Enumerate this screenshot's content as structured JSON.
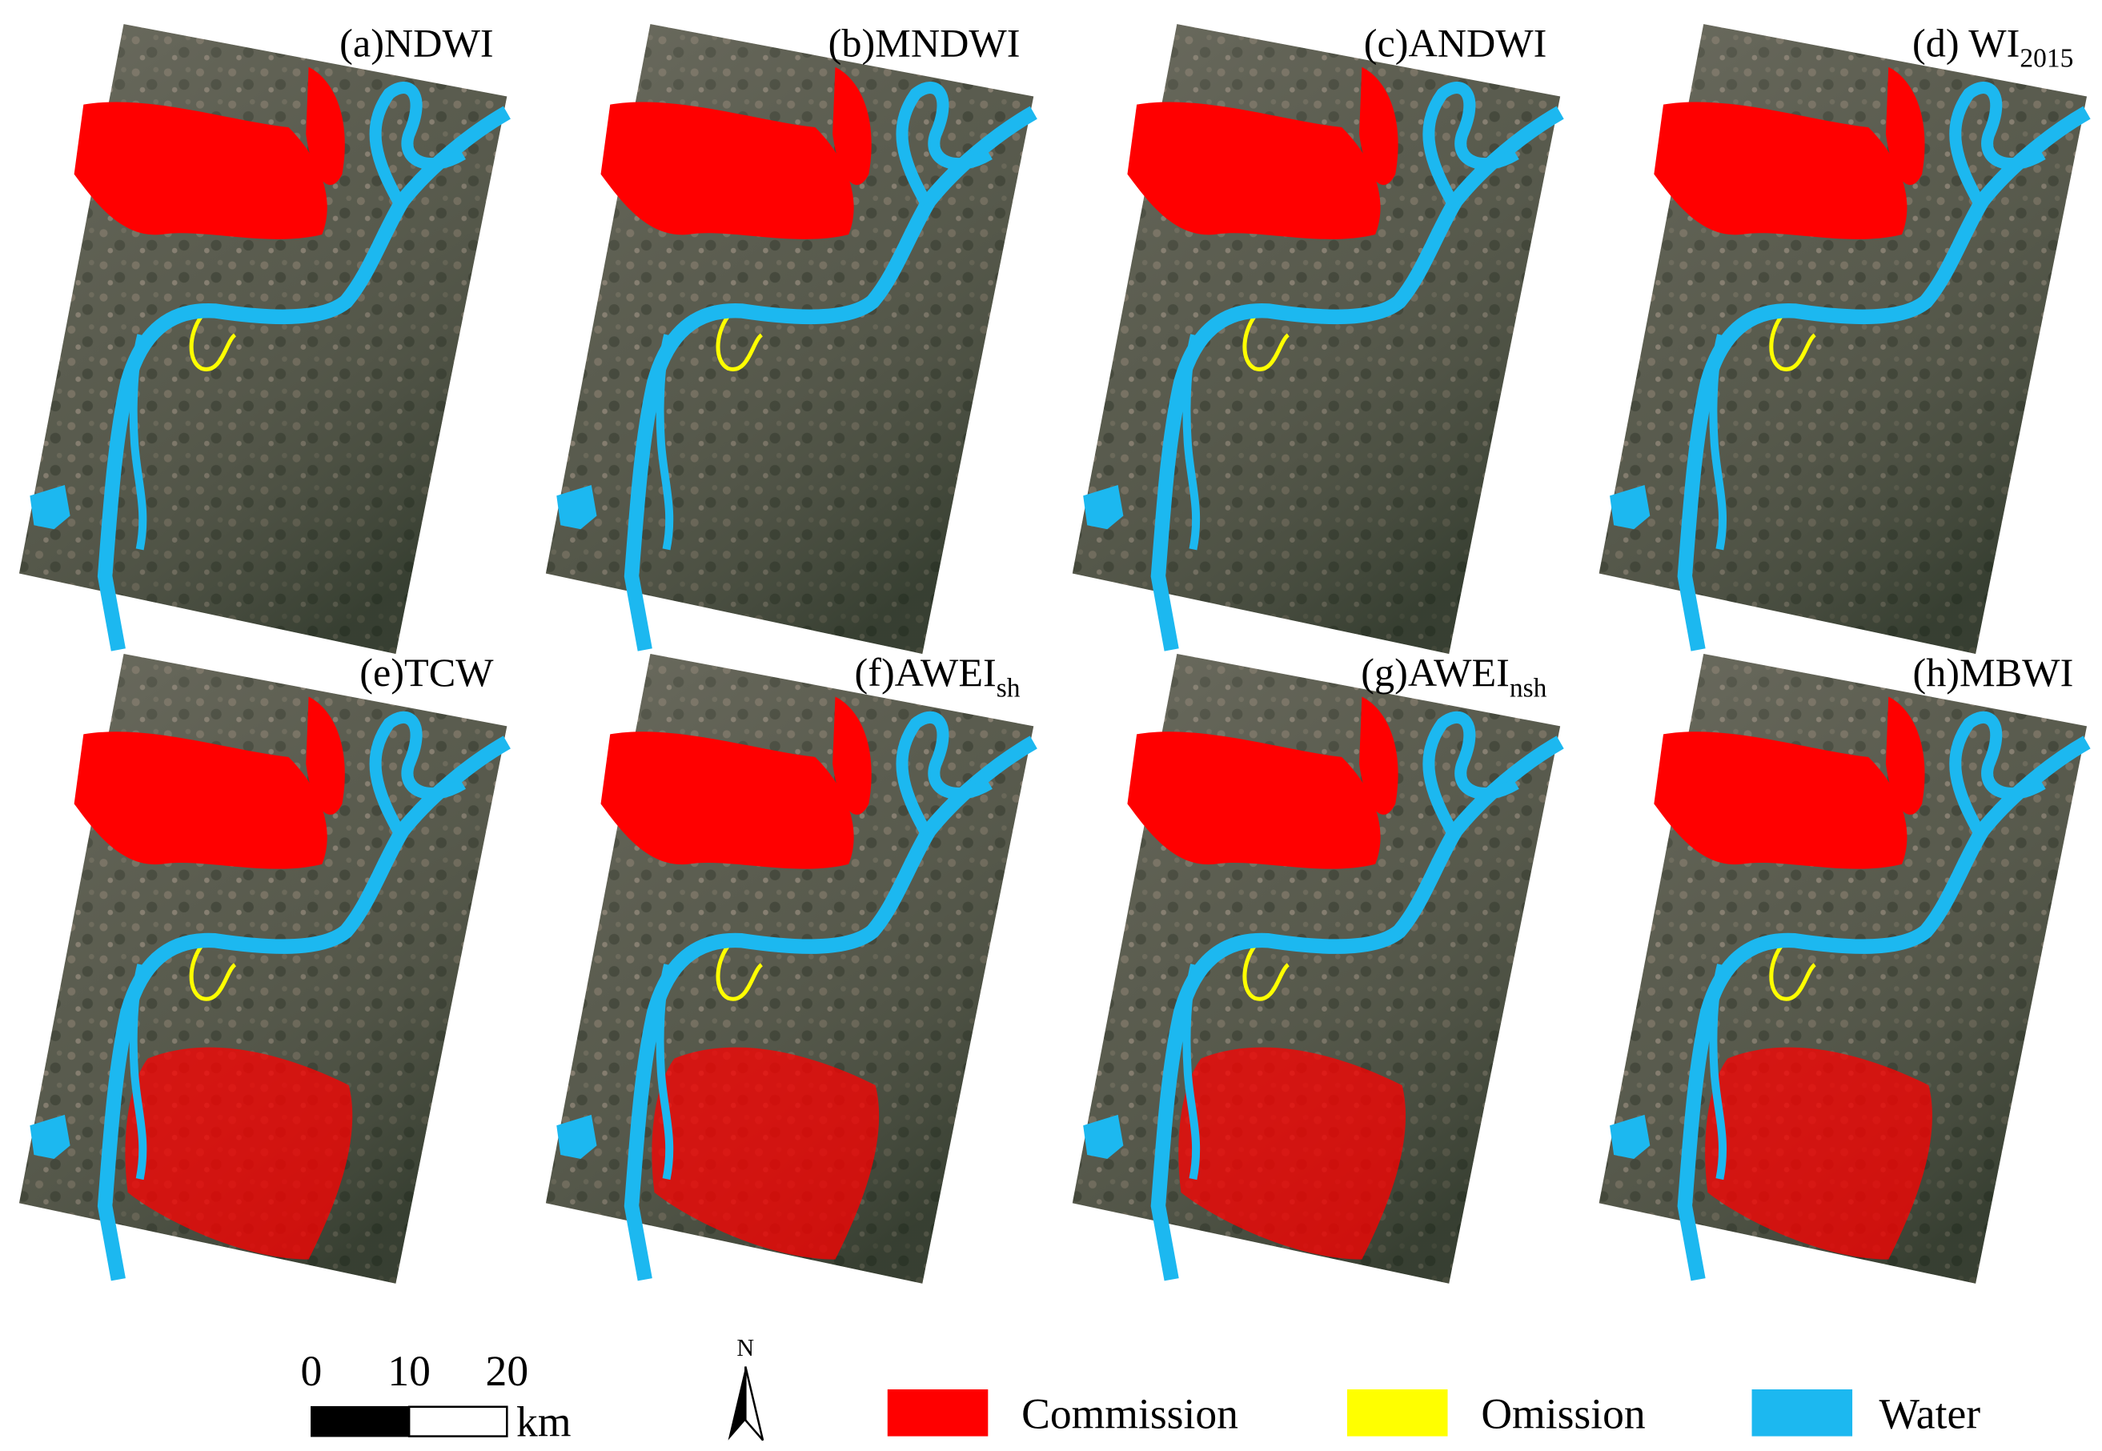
{
  "panels": [
    {
      "label": "(a)NDWI"
    },
    {
      "label": "(b)MNDWI"
    },
    {
      "label": "(c)ANDWI"
    },
    {
      "label": "(d) WI",
      "sub": "2015"
    },
    {
      "label": "(e)TCW"
    },
    {
      "label": "(f)AWEI",
      "sub": "sh"
    },
    {
      "label": "(g)AWEI",
      "sub": "nsh"
    },
    {
      "label": "(h)MBWI"
    }
  ],
  "scale_bar": {
    "ticks": [
      0,
      10,
      20
    ],
    "unit": "km"
  },
  "north": "N",
  "legend": [
    {
      "label": "Commission",
      "color": "#ff0000"
    },
    {
      "label": "Omission",
      "color": "#ffff00"
    },
    {
      "label": "Water",
      "color": "#1cb8f0"
    }
  ]
}
